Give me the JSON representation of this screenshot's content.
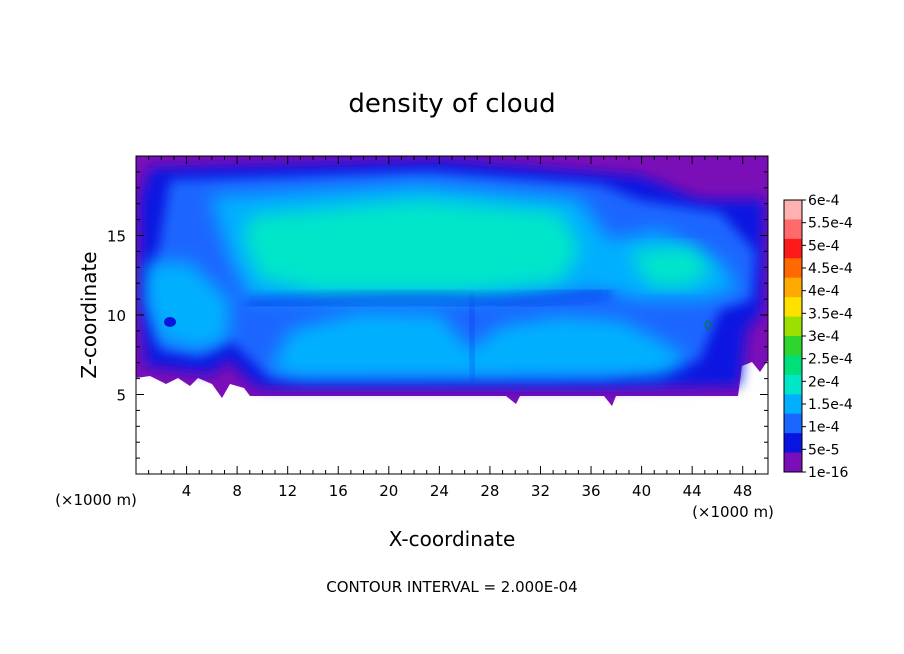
{
  "chart_data": {
    "type": "heatmap",
    "title": "density of cloud",
    "xlabel": "X-coordinate",
    "ylabel": "Z-coordinate",
    "x_unit_label": "(×1000 m)",
    "y_unit_label": "(×1000 m)",
    "xlim": [
      0,
      50
    ],
    "ylim": [
      0,
      20
    ],
    "x_ticks": [
      4,
      8,
      12,
      16,
      20,
      24,
      28,
      32,
      36,
      40,
      44,
      48
    ],
    "y_ticks": [
      5,
      10,
      15
    ],
    "footer": "CONTOUR INTERVAL = 2.000E-04",
    "colorbar": {
      "labels": [
        "6e-4",
        "5.5e-4",
        "5e-4",
        "4.5e-4",
        "4e-4",
        "3.5e-4",
        "3e-4",
        "2.5e-4",
        "2e-4",
        "1.5e-4",
        "1e-4",
        "5e-5",
        "1e-16"
      ],
      "colors": [
        "#ffb0b0",
        "#ff6b6b",
        "#ff1a1a",
        "#ff6a00",
        "#ffaa00",
        "#ffe100",
        "#9be000",
        "#2fd52f",
        "#00e07a",
        "#00e6c9",
        "#00b0ff",
        "#1a66ff",
        "#0a14e0",
        "#7a0fb8"
      ]
    },
    "field_levels": [
      {
        "value": "1e-16",
        "color": "#7a0fb8"
      },
      {
        "value": "5e-5",
        "color": "#0a14e0"
      },
      {
        "value": "1e-4",
        "color": "#1a66ff"
      },
      {
        "value": "1.5e-4",
        "color": "#00b0ff"
      },
      {
        "value": "2e-4",
        "color": "#00e6c9"
      }
    ]
  }
}
